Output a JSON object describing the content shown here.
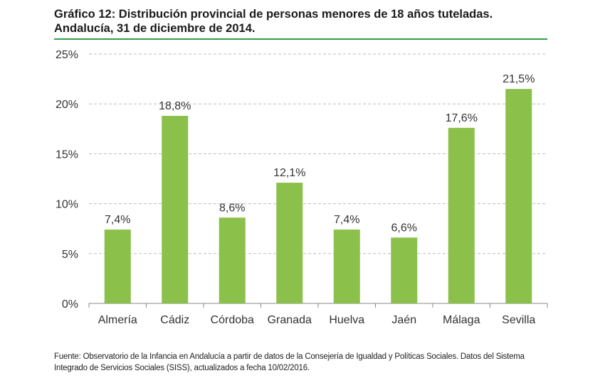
{
  "header": {
    "title_line1": "Gráfico 12: Distribución provincial de personas menores de 18 años tuteladas.",
    "title_line2": "Andalucía, 31 de diciembre de 2014."
  },
  "chart_data": {
    "type": "bar",
    "categories": [
      "Almería",
      "Cádiz",
      "Córdoba",
      "Granada",
      "Huelva",
      "Jaén",
      "Málaga",
      "Sevilla"
    ],
    "values": [
      7.4,
      18.8,
      8.6,
      12.1,
      7.4,
      6.6,
      17.6,
      21.5
    ],
    "data_labels": [
      "7,4%",
      "18,8%",
      "8,6%",
      "12,1%",
      "7,4%",
      "6,6%",
      "17,6%",
      "21,5%"
    ],
    "ylim": [
      0,
      25
    ],
    "yticks": [
      0,
      5,
      10,
      15,
      20,
      25
    ],
    "ytick_labels": [
      "0%",
      "5%",
      "10%",
      "15%",
      "20%",
      "25%"
    ],
    "grid": true,
    "bar_color": "#8bc04a",
    "accent_color": "#2e9e46"
  },
  "footer": {
    "source": "Fuente: Observatorio de la Infancia en Andalucía a partir de datos de la Consejería de Igualdad y Políticas Sociales. Datos del Sistema Integrado de Servicios Sociales (SISS), actualizados a fecha 10/02/2016."
  }
}
